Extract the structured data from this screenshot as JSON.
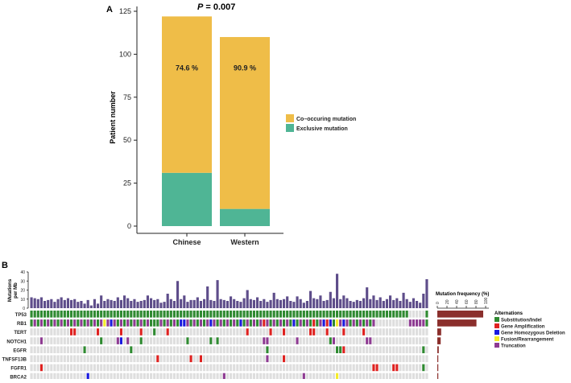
{
  "chart_data": [
    {
      "panel": "A",
      "type": "bar",
      "stacked": true,
      "title": "P = 0.007",
      "title_parts": {
        "p": "P",
        "rest": " = 0.007"
      },
      "xlabel": "",
      "ylabel": "Patient number",
      "ylim": [
        0,
        125
      ],
      "yticks": [
        0,
        25,
        50,
        75,
        100,
        125
      ],
      "categories": [
        "Chinese",
        "Western"
      ],
      "series": [
        {
          "name": "Exclusive mutation",
          "color": "#4fb595",
          "values": [
            31,
            10
          ]
        },
        {
          "name": "Co-occuring mutation",
          "color": "#efbd48",
          "values": [
            91,
            100
          ]
        }
      ],
      "data_labels": [
        "74.6 %",
        "90.9 %"
      ],
      "legend": [
        "Co–occuring mutation",
        "Exclusive mutation"
      ],
      "legend_position": "right"
    },
    {
      "panel": "B",
      "type": "heatmap",
      "samples": 120,
      "tmb_axis": {
        "label_line1": "Mutations",
        "label_line2": "per Mb",
        "ticks": [
          0,
          10,
          20,
          30,
          40
        ],
        "max": 40
      },
      "tmb": [
        12,
        11,
        10,
        12,
        8,
        9,
        10,
        7,
        10,
        12,
        9,
        11,
        9,
        10,
        7,
        8,
        5,
        9,
        3,
        10,
        5,
        14,
        8,
        10,
        9,
        8,
        12,
        9,
        14,
        11,
        8,
        10,
        7,
        8,
        9,
        14,
        11,
        9,
        10,
        6,
        7,
        16,
        10,
        8,
        30,
        10,
        14,
        7,
        9,
        9,
        12,
        8,
        10,
        24,
        9,
        8,
        31,
        10,
        9,
        8,
        13,
        10,
        8,
        7,
        11,
        20,
        10,
        9,
        12,
        8,
        10,
        7,
        9,
        17,
        10,
        9,
        10,
        13,
        8,
        7,
        13,
        10,
        6,
        8,
        19,
        11,
        10,
        14,
        8,
        9,
        18,
        11,
        38,
        10,
        14,
        11,
        8,
        7,
        9,
        8,
        11,
        23,
        10,
        14,
        9,
        12,
        8,
        10,
        14,
        9,
        11,
        8,
        17,
        10,
        7,
        11,
        8,
        6,
        16,
        32
      ],
      "genes": [
        "TP53",
        "RB1",
        "TERT",
        "NOTCH1",
        "EGFR",
        "TNFSF13B",
        "FGFR1",
        "BRCA2"
      ],
      "freq_axis": {
        "title": "Mutation frequency (%)",
        "ticks": [
          0,
          20,
          40,
          60,
          80,
          100
        ]
      },
      "frequency_pct": [
        95,
        81,
        8,
        7,
        3,
        2,
        2,
        2
      ],
      "freq_color": "#8b2f2c",
      "alteration_colors": {
        "S": "#2f8a31",
        "A": "#de2220",
        "D": "#1a1adf",
        "F": "#f4ec2a",
        "T": "#8e3b92",
        "none": "#dedede"
      },
      "legend_title": "Alternations",
      "legend": [
        {
          "code": "S",
          "label": "Substitution/Indel"
        },
        {
          "code": "A",
          "label": "Gene Amplification"
        },
        {
          "code": "D",
          "label": "Gene Homozygous Deletion"
        },
        {
          "code": "F",
          "label": "Fusion/Rearrangement"
        },
        {
          "code": "T",
          "label": "Truncation"
        }
      ],
      "cells": {
        "TP53": {
          "default": "S",
          "overrides": {
            "114": "none",
            "115": "none",
            "116": "none",
            "117": "none",
            "118": "none",
            "119": "S"
          }
        },
        "RB1": {
          "pattern": "ST",
          "overrides": {
            "22": "F",
            "24": "D",
            "37": "S",
            "45": "D",
            "46": "D",
            "54": "D",
            "63": "D",
            "70": "A",
            "79": "D",
            "85": "A",
            "88": "D",
            "89": "A",
            "90": "D",
            "91": "S",
            "92": "F",
            "94": "D",
            "104": "none",
            "105": "none",
            "106": "none",
            "107": "none",
            "108": "none",
            "109": "none",
            "110": "none",
            "111": "none",
            "112": "none",
            "113": "none",
            "114": "T",
            "115": "T",
            "116": "T",
            "117": "T",
            "118": "T",
            "119": "S"
          }
        },
        "TERT": {
          "default": "none",
          "overrides": {
            "12": "A",
            "13": "A",
            "20": "A",
            "27": "A",
            "33": "A",
            "37": "S",
            "41": "A",
            "65": "A",
            "72": "A",
            "76": "A",
            "84": "A",
            "85": "A",
            "89": "A",
            "94": "A",
            "100": "A"
          }
        },
        "NOTCH1": {
          "default": "none",
          "overrides": {
            "3": "T",
            "21": "S",
            "26": "T",
            "27": "D",
            "29": "T",
            "33": "S",
            "47": "S",
            "54": "S",
            "56": "S",
            "70": "T",
            "71": "T",
            "80": "T",
            "90": "S",
            "91": "T",
            "101": "T",
            "102": "T"
          }
        },
        "EGFR": {
          "default": "none",
          "overrides": {
            "16": "S",
            "30": "S",
            "71": "S",
            "92": "S",
            "93": "S",
            "94": "A",
            "118": "S"
          }
        },
        "TNFSF13B": {
          "default": "none",
          "overrides": {
            "38": "A",
            "48": "A",
            "51": "A",
            "71": "T",
            "76": "A"
          }
        },
        "FGFR1": {
          "default": "none",
          "overrides": {
            "3": "A",
            "103": "A",
            "104": "A",
            "109": "A",
            "110": "A",
            "118": "S"
          }
        },
        "BRCA2": {
          "default": "none",
          "overrides": {
            "17": "D",
            "58": "T",
            "82": "T",
            "92": "F"
          }
        }
      }
    }
  ]
}
